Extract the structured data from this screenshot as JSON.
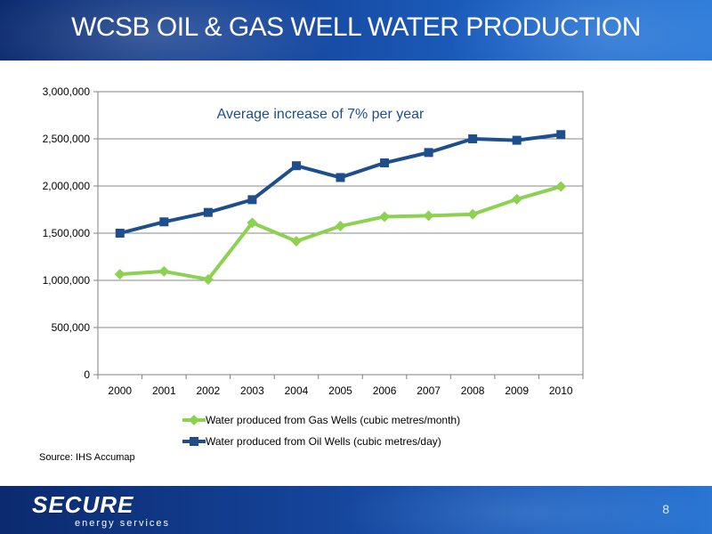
{
  "slide": {
    "title": "WCSB OIL & GAS WELL WATER PRODUCTION",
    "source": "Source: IHS Accumap",
    "page_number": "8",
    "logo": {
      "main": "SECURE",
      "sub": "energy services"
    }
  },
  "chart_data": {
    "type": "line",
    "annotation": "Average increase of 7% per year",
    "x": [
      "2000",
      "2001",
      "2002",
      "2003",
      "2004",
      "2005",
      "2006",
      "2007",
      "2008",
      "2009",
      "2010"
    ],
    "ylim": [
      0,
      3000000
    ],
    "yticks": [
      0,
      500000,
      1000000,
      1500000,
      2000000,
      2500000,
      3000000
    ],
    "ytick_labels": [
      "0",
      "500,000",
      "1,000,000",
      "1,500,000",
      "2,000,000",
      "2,500,000",
      "3,000,000"
    ],
    "grid": true,
    "legend_position": "bottom",
    "series": [
      {
        "name": "Water produced from Gas Wells (cubic metres/month)",
        "color": "#8dd150",
        "marker": "diamond",
        "values": [
          1065000,
          1095000,
          1010000,
          1610000,
          1415000,
          1575000,
          1675000,
          1685000,
          1700000,
          1860000,
          1995000
        ]
      },
      {
        "name": "Water produced from Oil Wells (cubic metres/day)",
        "color": "#1f4e8c",
        "marker": "square",
        "values": [
          1500000,
          1620000,
          1720000,
          1855000,
          2215000,
          2090000,
          2245000,
          2355000,
          2500000,
          2485000,
          2545000
        ]
      }
    ]
  }
}
